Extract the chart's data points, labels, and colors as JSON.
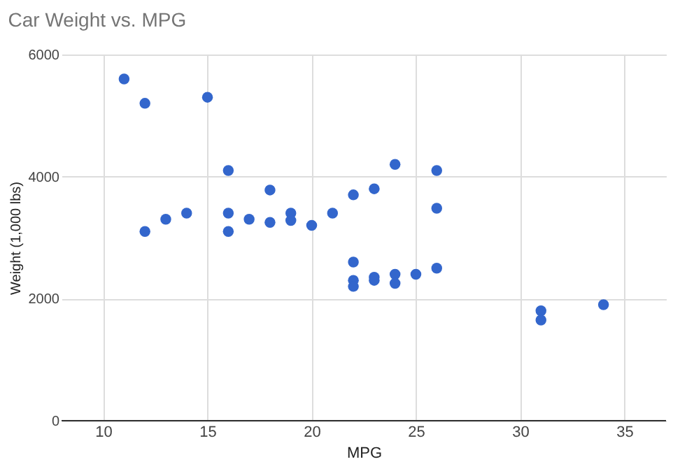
{
  "chart_data": {
    "type": "scatter",
    "title": "Car Weight vs. MPG",
    "xlabel": "MPG",
    "ylabel": "Weight (1,000 lbs)",
    "x": [
      11,
      12,
      15,
      16,
      18,
      12,
      13,
      14,
      16,
      16,
      17,
      18,
      19,
      19,
      20,
      21,
      22,
      23,
      24,
      26,
      26,
      22,
      22,
      22,
      23,
      23,
      24,
      24,
      25,
      26,
      31,
      31,
      34
    ],
    "series": [
      {
        "color": "#3366cc",
        "values": [
          5600,
          5200,
          5300,
          4100,
          3780,
          3100,
          3300,
          3400,
          3400,
          3100,
          3300,
          3250,
          3400,
          3280,
          3200,
          3400,
          3700,
          3800,
          4200,
          4100,
          3480,
          2600,
          2300,
          2200,
          2350,
          2300,
          2400,
          2250,
          2400,
          2500,
          1800,
          1650,
          1900
        ]
      }
    ],
    "xlim": [
      8,
      37
    ],
    "xticks": [
      10,
      15,
      20,
      25,
      30,
      35
    ],
    "ylim": [
      0,
      6000
    ],
    "yticks": [
      0,
      2000,
      4000,
      6000
    ],
    "grid": true,
    "marker": "circle"
  }
}
